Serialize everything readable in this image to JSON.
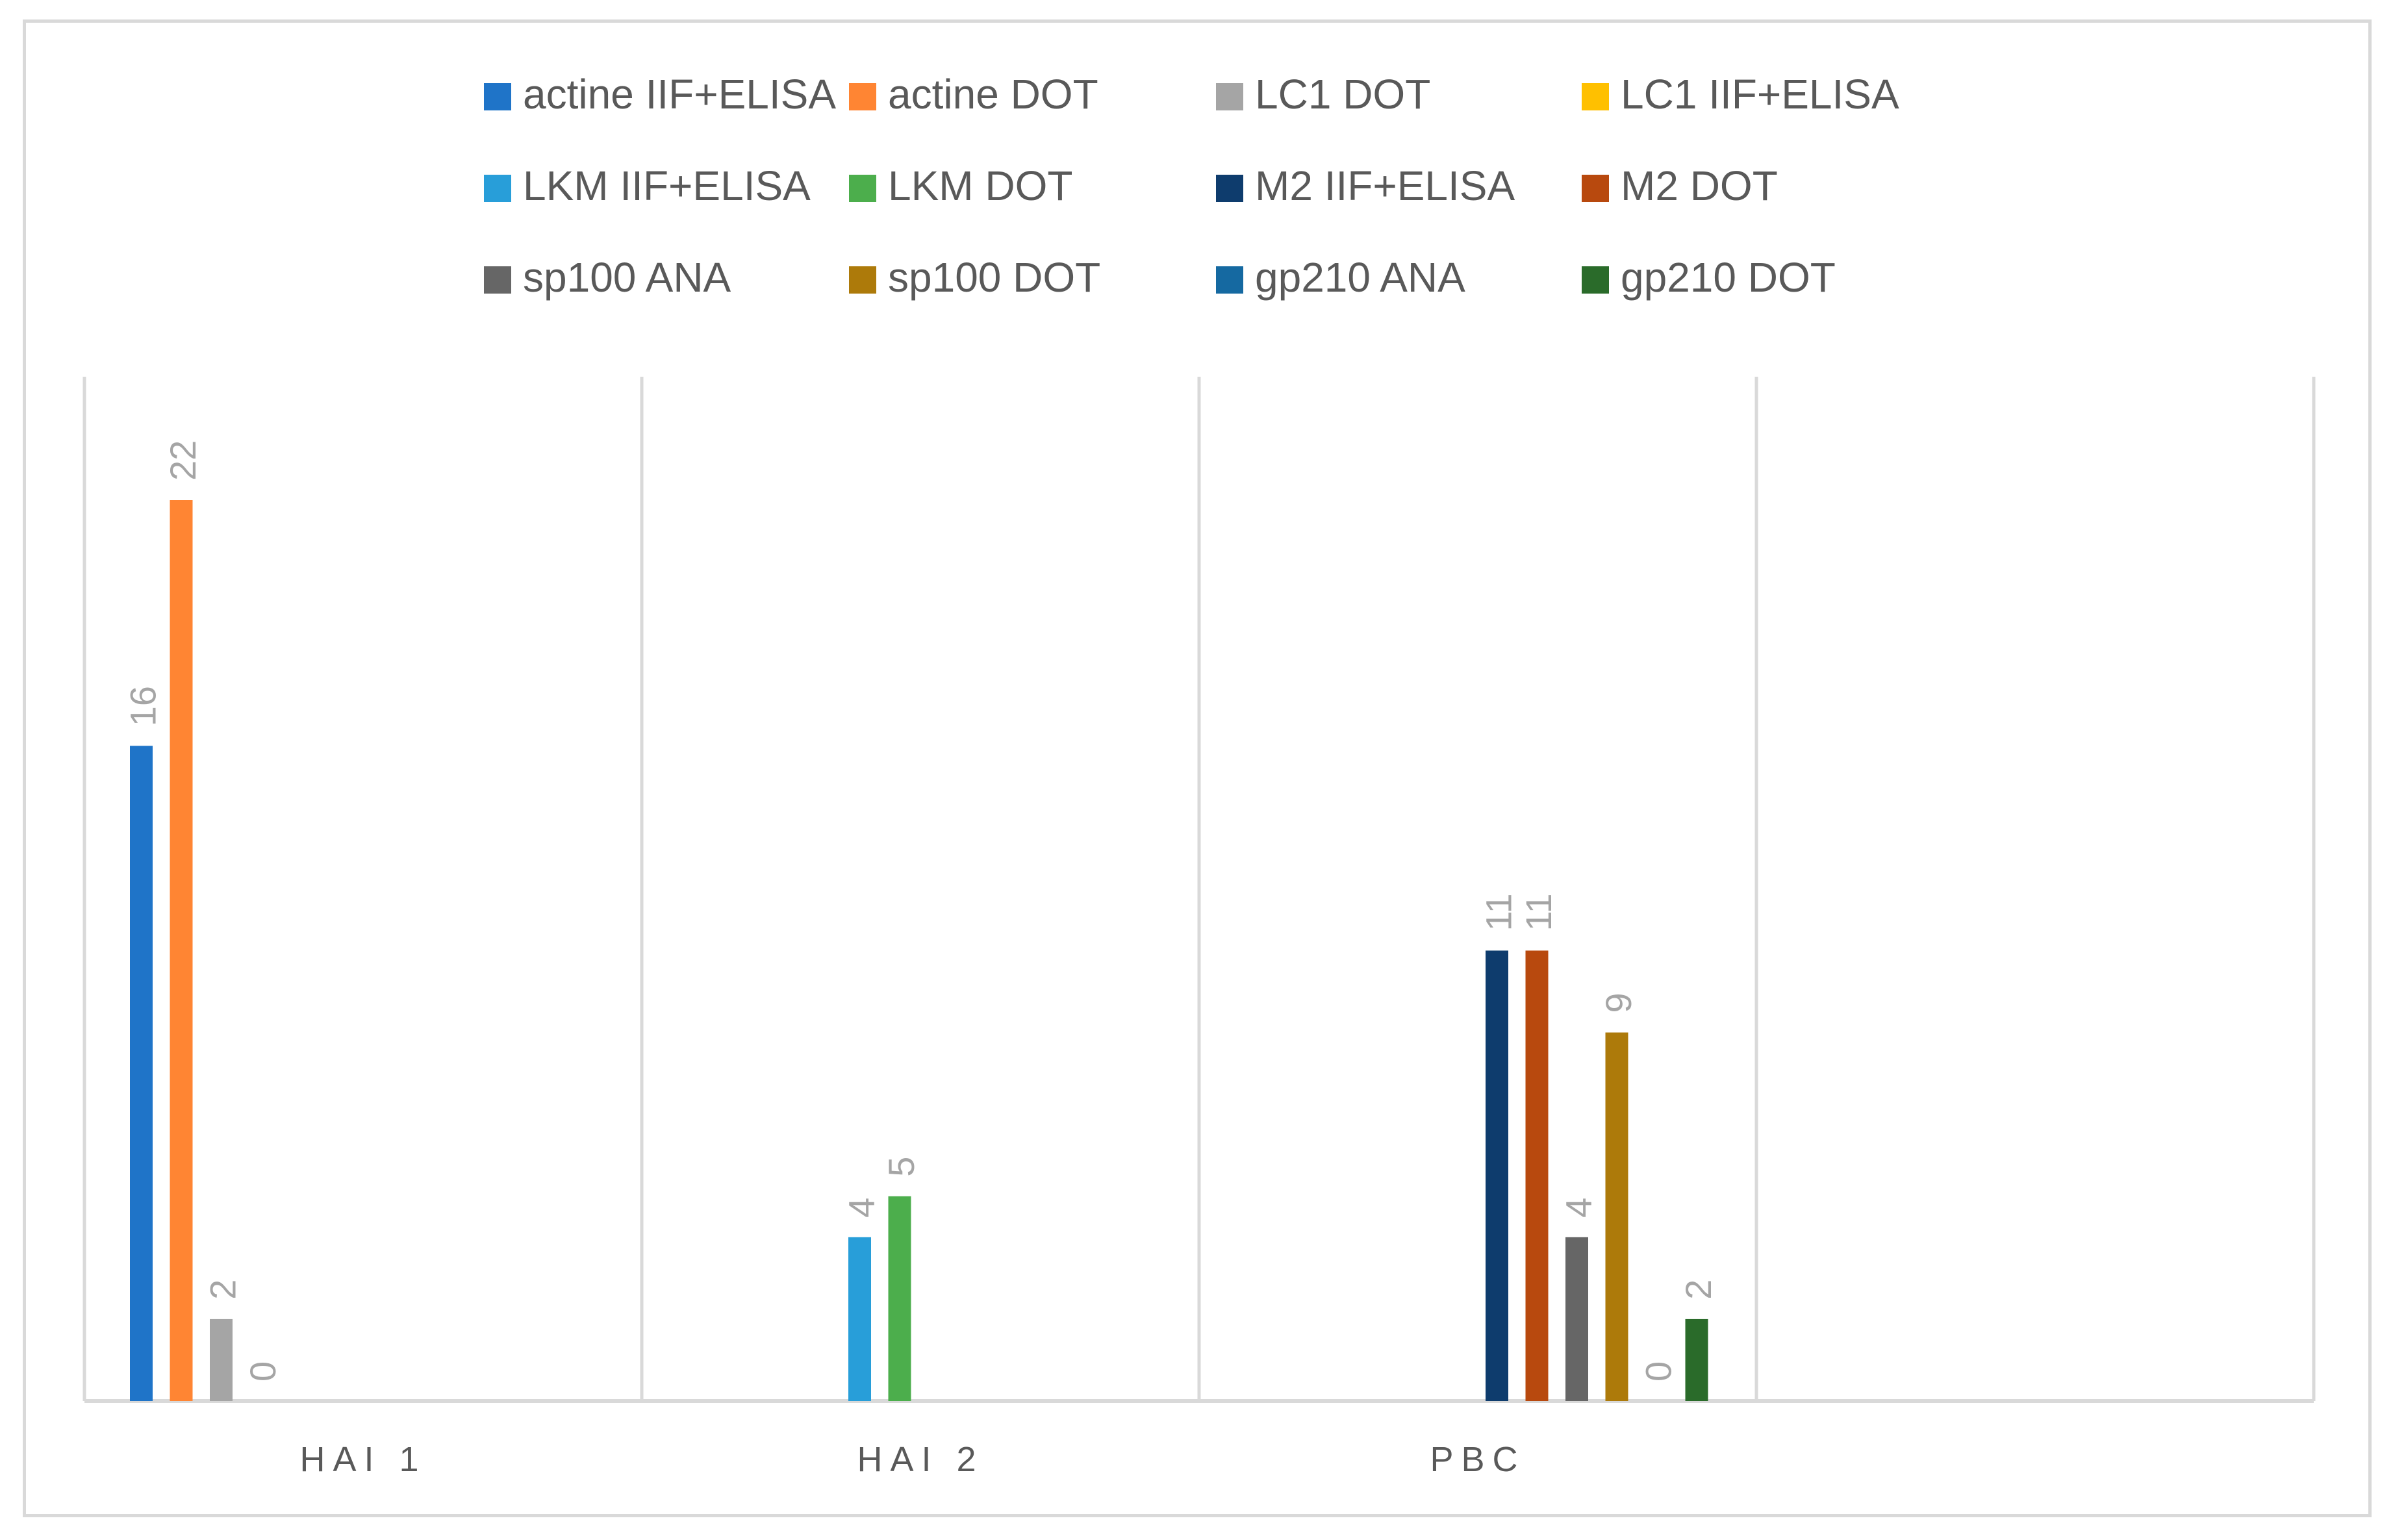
{
  "chart_data": {
    "type": "bar",
    "title": "",
    "xlabel": "",
    "ylabel": "",
    "ylim": [
      0,
      22
    ],
    "grid": "vertical category separators",
    "legend_position": "top",
    "categories": [
      "HAI 1",
      "HAI 2",
      "PBC",
      ""
    ],
    "series": [
      {
        "name": "actine IIF+ELISA",
        "color": "#1f74c8",
        "values": [
          16,
          null,
          null,
          null
        ]
      },
      {
        "name": "actine DOT",
        "color": "#ff8533",
        "values": [
          22,
          null,
          null,
          null
        ]
      },
      {
        "name": "LC1 DOT",
        "color": "#a5a5a5",
        "values": [
          2,
          null,
          null,
          null
        ]
      },
      {
        "name": "LC1 IIF+ELISA",
        "color": "#ffc000",
        "values": [
          0,
          null,
          null,
          null
        ]
      },
      {
        "name": "LKM IIF+ELISA",
        "color": "#289ed9",
        "values": [
          null,
          4,
          null,
          null
        ]
      },
      {
        "name": "LKM DOT",
        "color": "#4cae4c",
        "values": [
          null,
          5,
          null,
          null
        ]
      },
      {
        "name": "M2 IIF+ELISA",
        "color": "#0e3c6d",
        "values": [
          null,
          null,
          11,
          null
        ]
      },
      {
        "name": "M2 DOT",
        "color": "#b8490e",
        "values": [
          null,
          null,
          11,
          null
        ]
      },
      {
        "name": "sp100 ANA",
        "color": "#666666",
        "values": [
          null,
          null,
          4,
          null
        ]
      },
      {
        "name": "sp100 DOT",
        "color": "#ad7a0a",
        "values": [
          null,
          null,
          9,
          null
        ]
      },
      {
        "name": "gp210 ANA",
        "color": "#1569a1",
        "values": [
          null,
          null,
          0,
          null
        ]
      },
      {
        "name": "gp210 DOT",
        "color": "#2a6b2a",
        "values": [
          null,
          null,
          2,
          null
        ]
      }
    ],
    "colors": {
      "axis": "#d9d9d9",
      "label_text": "#a5a5a5",
      "legend_text": "#595959",
      "category_text": "#595959"
    }
  }
}
